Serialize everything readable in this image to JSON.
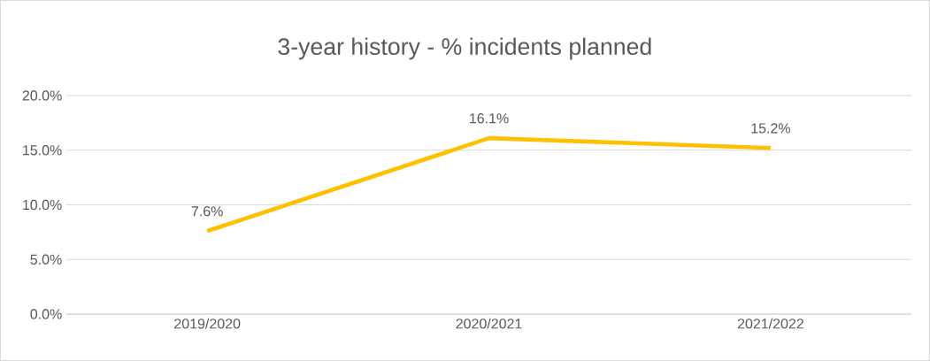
{
  "chart_data": {
    "type": "line",
    "title": "3-year history - % incidents planned",
    "categories": [
      "2019/2020",
      "2020/2021",
      "2021/2022"
    ],
    "values": [
      7.6,
      16.1,
      15.2
    ],
    "value_labels": [
      "7.6%",
      "16.1%",
      "15.2%"
    ],
    "color": "#ffc000",
    "ylim": [
      0,
      20
    ],
    "yticks": [
      {
        "value": 0,
        "label": "0.0%"
      },
      {
        "value": 5,
        "label": "5.0%"
      },
      {
        "value": 10,
        "label": "10.0%"
      },
      {
        "value": 15,
        "label": "15.0%"
      },
      {
        "value": 20,
        "label": "20.0%"
      }
    ],
    "grid": "y"
  }
}
